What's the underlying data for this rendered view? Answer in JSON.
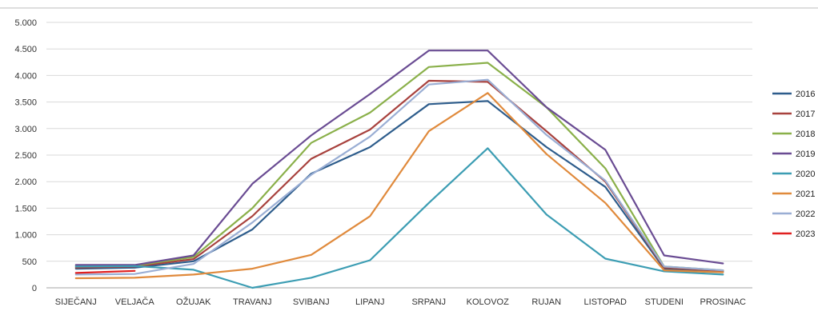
{
  "chart_data": {
    "type": "line",
    "title": "",
    "xlabel": "",
    "ylabel": "",
    "ylim": [
      0,
      5000
    ],
    "y_ticks": [
      {
        "value": 0,
        "label": "0"
      },
      {
        "value": 500,
        "label": "500"
      },
      {
        "value": 1000,
        "label": "1.000"
      },
      {
        "value": 1500,
        "label": "1.500"
      },
      {
        "value": 2000,
        "label": "2.000"
      },
      {
        "value": 2500,
        "label": "2.500"
      },
      {
        "value": 3000,
        "label": "3.000"
      },
      {
        "value": 3500,
        "label": "3.500"
      },
      {
        "value": 4000,
        "label": "4.000"
      },
      {
        "value": 4500,
        "label": "4.500"
      },
      {
        "value": 5000,
        "label": "5.000"
      }
    ],
    "grid": true,
    "legend_position": "right",
    "categories": [
      "SIJEČANJ",
      "VELJAČA",
      "OŽUJAK",
      "TRAVANJ",
      "SVIBANJ",
      "LIPANJ",
      "SRPANJ",
      "KOLOVOZ",
      "RUJAN",
      "LISTOPAD",
      "STUDENI",
      "PROSINAC"
    ],
    "series": [
      {
        "name": "2016",
        "color": "#2e5d8c",
        "values": [
          360,
          380,
          500,
          1100,
          2150,
          2650,
          3460,
          3520,
          2650,
          1900,
          360,
          300
        ]
      },
      {
        "name": "2017",
        "color": "#a8423e",
        "values": [
          380,
          400,
          540,
          1350,
          2430,
          2980,
          3900,
          3880,
          2950,
          2000,
          380,
          320
        ]
      },
      {
        "name": "2018",
        "color": "#8ab04a",
        "values": [
          410,
          420,
          580,
          1500,
          2730,
          3300,
          4160,
          4240,
          3400,
          2250,
          400,
          330
        ]
      },
      {
        "name": "2019",
        "color": "#6a4c93",
        "values": [
          430,
          430,
          610,
          1960,
          2870,
          3650,
          4470,
          4470,
          3400,
          2600,
          610,
          460
        ]
      },
      {
        "name": "2020",
        "color": "#3c9db3",
        "values": [
          400,
          410,
          340,
          0,
          190,
          520,
          1600,
          2630,
          1380,
          550,
          310,
          250
        ]
      },
      {
        "name": "2021",
        "color": "#e08a3c",
        "values": [
          180,
          190,
          250,
          360,
          620,
          1350,
          2950,
          3670,
          2520,
          1600,
          330,
          290
        ]
      },
      {
        "name": "2022",
        "color": "#9aaed4",
        "values": [
          250,
          260,
          450,
          1230,
          2130,
          2850,
          3830,
          3920,
          2880,
          2020,
          400,
          330
        ]
      },
      {
        "name": "2023",
        "color": "#e02020",
        "values": [
          280,
          320,
          null,
          null,
          null,
          null,
          null,
          null,
          null,
          null,
          null,
          null
        ]
      }
    ]
  }
}
